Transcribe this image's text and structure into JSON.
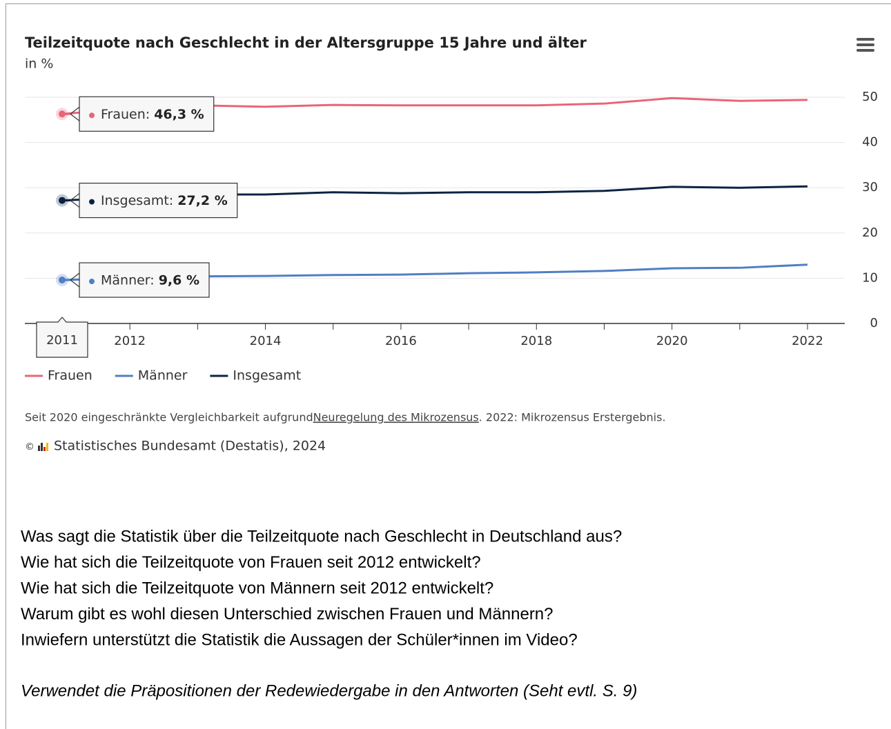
{
  "chart_data": {
    "type": "line",
    "title": "Teilzeitquote nach Geschlecht in der Altersgruppe 15 Jahre und älter",
    "subtitle": "in %",
    "x": [
      2011,
      2012,
      2013,
      2014,
      2015,
      2016,
      2017,
      2018,
      2019,
      2020,
      2021,
      2022
    ],
    "xlim": [
      2010.45,
      2022.55
    ],
    "xticks": [
      2012,
      2014,
      2016,
      2018,
      2020,
      2022
    ],
    "xminorticks": [
      2013,
      2015,
      2017,
      2019,
      2021
    ],
    "ylim": [
      0,
      50
    ],
    "yticks": [
      0,
      10,
      20,
      30,
      40,
      50
    ],
    "grid": true,
    "series": [
      {
        "name": "Frauen",
        "color": "#e8657a",
        "values": [
          46.3,
          47.5,
          48.2,
          47.9,
          48.3,
          48.2,
          48.2,
          48.2,
          48.6,
          49.8,
          49.2,
          49.4
        ],
        "value_labels": [
          "46,3 %",
          null,
          null,
          null,
          null,
          null,
          null,
          null,
          null,
          null,
          null,
          null
        ]
      },
      {
        "name": "Männer",
        "color": "#4f7fc4",
        "values": [
          9.6,
          10.0,
          10.4,
          10.5,
          10.7,
          10.8,
          11.1,
          11.3,
          11.6,
          12.2,
          12.3,
          13.0
        ],
        "value_labels": [
          "9,6 %",
          null,
          null,
          null,
          null,
          null,
          null,
          null,
          null,
          null,
          null,
          null
        ]
      },
      {
        "name": "Insgesamt",
        "color": "#0b2343",
        "values": [
          27.2,
          27.8,
          28.5,
          28.5,
          29.0,
          28.8,
          29.0,
          29.0,
          29.3,
          30.2,
          30.0,
          30.3
        ],
        "value_labels": [
          "27,2 %",
          null,
          null,
          null,
          null,
          null,
          null,
          null,
          null,
          null,
          null,
          null
        ]
      }
    ],
    "tooltip_labels": [
      "Frauen:",
      "Männer:",
      "Insgesamt:"
    ],
    "footnote": [
      "Seit 2020 eingeschränkte Vergleichbarkeit aufgrund ",
      "Neuregelung des Mikrozensus",
      ". 2022: Mikrozensus Erstergebnis."
    ],
    "credit": {
      "symbol": "©",
      "text": "Statistisches Bundesamt (Destatis), 2024"
    }
  },
  "questions": [
    "Was sagt die Statistik über die Teilzeitquote nach Geschlecht in Deutschland aus?",
    "Wie hat sich die Teilzeitquote von Frauen seit 2012 entwickelt?",
    "Wie hat sich die Teilzeitquote von Männern seit 2012 entwickelt?",
    "Warum gibt es wohl diesen Unterschied zwischen Frauen und Männern?",
    "Inwiefern unterstützt die Statistik die Aussagen der Schüler*innen im Video?"
  ],
  "note": "Verwendet die Präpositionen der Redewiedergabe in den Antworten (Seht evtl. S. 9)"
}
